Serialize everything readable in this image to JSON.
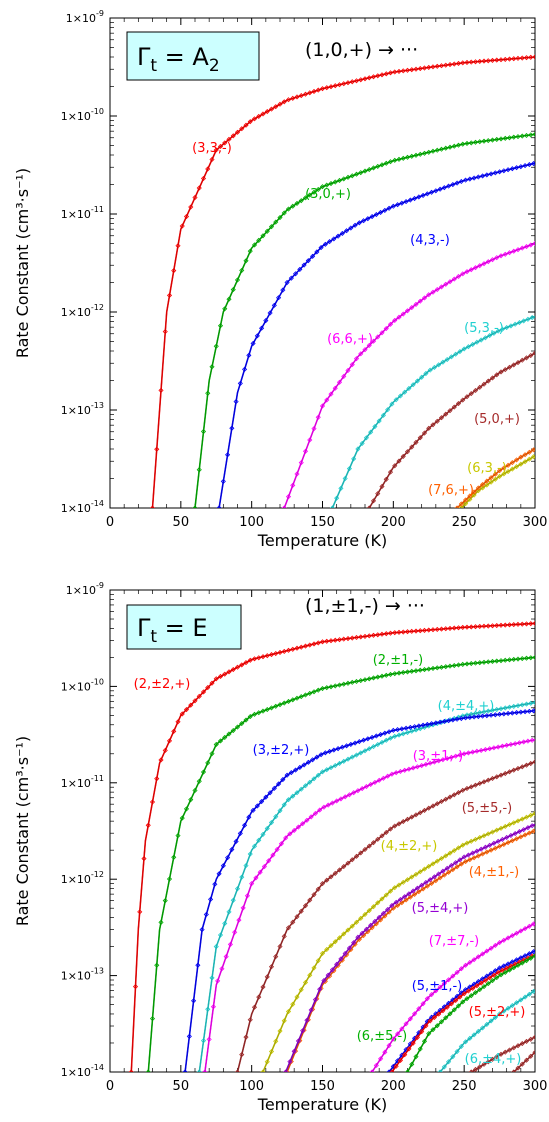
{
  "chart_data": [
    {
      "type": "line",
      "panel_label": {
        "symbol": "Γ",
        "subscript": "t",
        "rest": " = A",
        "rest_subscript": "2"
      },
      "transition": "(1,0,+) → ···",
      "xlabel": "Temperature (K)",
      "ylabel": "Rate Constant (cm³·s⁻¹)",
      "xlim": [
        0,
        300
      ],
      "ylim": [
        1e-14,
        1e-09
      ],
      "yscale": "log",
      "x_ticks": [
        "0",
        "50",
        "100",
        "150",
        "200",
        "250",
        "300"
      ],
      "y_ticks": [
        {
          "base": "1×10",
          "exp": "-14"
        },
        {
          "base": "1×10",
          "exp": "-13"
        },
        {
          "base": "1×10",
          "exp": "-12"
        },
        {
          "base": "1×10",
          "exp": "-11"
        },
        {
          "base": "1×10",
          "exp": "-10"
        },
        {
          "base": "1×10",
          "exp": "-9"
        }
      ],
      "series": [
        {
          "name": "(3,3,-)",
          "color": "#ff0000",
          "x": [
            30,
            40,
            50,
            75,
            100,
            125,
            150,
            200,
            250,
            300
          ],
          "y": [
            1e-14,
            1e-12,
            7e-12,
            4.5e-11,
            9e-11,
            1.45e-10,
            1.9e-10,
            2.8e-10,
            3.5e-10,
            4e-10
          ]
        },
        {
          "name": "(3,0,+)",
          "color": "#00b000",
          "x": [
            60,
            70,
            80,
            100,
            125,
            150,
            200,
            250,
            300
          ],
          "y": [
            1e-14,
            2e-13,
            1e-12,
            4.5e-12,
            1.1e-11,
            1.9e-11,
            3.5e-11,
            5.2e-11,
            6.5e-11
          ]
        },
        {
          "name": "(4,3,-)",
          "color": "#0000ff",
          "x": [
            77,
            90,
            100,
            125,
            150,
            175,
            200,
            250,
            300
          ],
          "y": [
            1e-14,
            1.5e-13,
            4.5e-13,
            2e-12,
            4.7e-12,
            8e-12,
            1.2e-11,
            2.2e-11,
            3.3e-11
          ]
        },
        {
          "name": "(6,6,+)",
          "color": "#ff00ff",
          "x": [
            123,
            150,
            175,
            200,
            225,
            250,
            275,
            300
          ],
          "y": [
            1e-14,
            1.1e-13,
            3.5e-13,
            8e-13,
            1.5e-12,
            2.5e-12,
            3.7e-12,
            5e-12
          ]
        },
        {
          "name": "(5,3,-)",
          "color": "#20d0d0",
          "x": [
            157,
            175,
            200,
            225,
            250,
            275,
            300
          ],
          "y": [
            1e-14,
            4e-14,
            1.2e-13,
            2.5e-13,
            4.2e-13,
            6.5e-13,
            9e-13
          ]
        },
        {
          "name": "(5,0,+)",
          "color": "#a52a2a",
          "x": [
            183,
            200,
            225,
            250,
            275,
            300
          ],
          "y": [
            1e-14,
            2.6e-14,
            6.5e-14,
            1.3e-13,
            2.4e-13,
            3.8e-13
          ]
        },
        {
          "name": "(6,3,-)",
          "color": "#c8c800",
          "x": [
            248,
            260,
            275,
            290,
            300
          ],
          "y": [
            1e-14,
            1.5e-14,
            2.1e-14,
            2.8e-14,
            3.4e-14
          ]
        },
        {
          "name": "(7,6,+)",
          "color": "#ff6000",
          "x": [
            245,
            260,
            275,
            290,
            300
          ],
          "y": [
            1e-14,
            1.6e-14,
            2.4e-14,
            3.3e-14,
            4e-14
          ]
        }
      ]
    },
    {
      "type": "line",
      "panel_label": {
        "symbol": "Γ",
        "subscript": "t",
        "rest": " = E",
        "rest_subscript": ""
      },
      "transition": "(1,±1,-) → ···",
      "xlabel": "Temperature (K)",
      "ylabel": "Rate Constant (cm³·s⁻¹)",
      "xlim": [
        0,
        300
      ],
      "ylim": [
        1e-14,
        1e-09
      ],
      "yscale": "log",
      "x_ticks": [
        "0",
        "50",
        "100",
        "150",
        "200",
        "250",
        "300"
      ],
      "y_ticks": [
        {
          "base": "1×10",
          "exp": "-14"
        },
        {
          "base": "1×10",
          "exp": "-13"
        },
        {
          "base": "1×10",
          "exp": "-12"
        },
        {
          "base": "1×10",
          "exp": "-11"
        },
        {
          "base": "1×10",
          "exp": "-10"
        },
        {
          "base": "1×10",
          "exp": "-9"
        }
      ],
      "series": [
        {
          "name": "(2,±2,+)",
          "color": "#ff0000",
          "x": [
            15,
            20,
            25,
            35,
            50,
            75,
            100,
            150,
            200,
            250,
            300
          ],
          "y": [
            1e-14,
            3e-13,
            2.5e-12,
            1.6e-11,
            5e-11,
            1.2e-10,
            1.9e-10,
            2.9e-10,
            3.6e-10,
            4.1e-10,
            4.5e-10
          ]
        },
        {
          "name": "(2,±1,-)",
          "color": "#00b000",
          "x": [
            27,
            35,
            50,
            75,
            100,
            150,
            200,
            250,
            300
          ],
          "y": [
            1e-14,
            3e-13,
            4e-12,
            2.5e-11,
            5e-11,
            9.5e-11,
            1.35e-10,
            1.7e-10,
            2e-10
          ]
        },
        {
          "name": "(4,±4,+)",
          "color": "#20d0d0",
          "x": [
            63,
            75,
            100,
            125,
            150,
            200,
            250,
            300
          ],
          "y": [
            1e-14,
            2e-13,
            2e-12,
            6.5e-12,
            1.3e-11,
            3e-11,
            5e-11,
            6.8e-11
          ]
        },
        {
          "name": "(3,±2,+)",
          "color": "#0000ff",
          "x": [
            53,
            65,
            75,
            100,
            125,
            150,
            200,
            250,
            300
          ],
          "y": [
            1e-14,
            3e-13,
            1e-12,
            5e-12,
            1.2e-11,
            2e-11,
            3.5e-11,
            4.7e-11,
            5.6e-11
          ]
        },
        {
          "name": "(3,±1,-)",
          "color": "#ff00ff",
          "x": [
            67,
            75,
            100,
            125,
            150,
            200,
            250,
            300
          ],
          "y": [
            1e-14,
            8e-14,
            9e-13,
            2.8e-12,
            5.5e-12,
            1.25e-11,
            2e-11,
            2.8e-11
          ]
        },
        {
          "name": "(5,±5,-)",
          "color": "#a52a2a",
          "x": [
            90,
            100,
            125,
            150,
            200,
            250,
            300
          ],
          "y": [
            1e-14,
            4e-14,
            3e-13,
            9e-13,
            3.5e-12,
            8.5e-12,
            1.65e-11
          ]
        },
        {
          "name": "(4,±2,+)",
          "color": "#c8c800",
          "x": [
            108,
            125,
            150,
            200,
            250,
            300
          ],
          "y": [
            1e-14,
            4e-14,
            1.7e-13,
            8e-13,
            2.3e-12,
            4.8e-12
          ]
        },
        {
          "name": "(4,±1,-)",
          "color": "#ff6000",
          "x": [
            125,
            150,
            175,
            200,
            250,
            300
          ],
          "y": [
            1e-14,
            8e-14,
            2.3e-13,
            5e-13,
            1.5e-12,
            3.2e-12
          ]
        },
        {
          "name": "(5,±4,+)",
          "color": "#9400d3",
          "x": [
            124,
            150,
            175,
            200,
            250,
            300
          ],
          "y": [
            1e-14,
            8.5e-14,
            2.5e-13,
            5.5e-13,
            1.7e-12,
            3.7e-12
          ]
        },
        {
          "name": "(7,±7,-)",
          "color": "#ff00ff",
          "x": [
            185,
            200,
            225,
            250,
            275,
            300
          ],
          "y": [
            1e-14,
            2.2e-14,
            6e-14,
            1.25e-13,
            2.2e-13,
            3.5e-13
          ]
        },
        {
          "name": "(5,±1,-)",
          "color": "#0000ff",
          "x": [
            197,
            225,
            250,
            275,
            300
          ],
          "y": [
            1e-14,
            3.5e-14,
            7e-14,
            1.2e-13,
            1.8e-13
          ]
        },
        {
          "name": "(5,±2,+)",
          "color": "#ff0000",
          "x": [
            199,
            225,
            250,
            275,
            300
          ],
          "y": [
            1e-14,
            3.3e-14,
            6.5e-14,
            1.1e-13,
            1.65e-13
          ]
        },
        {
          "name": "(6,±5,-)",
          "color": "#00b000",
          "x": [
            210,
            225,
            250,
            275,
            300
          ],
          "y": [
            1e-14,
            2.5e-14,
            5.5e-14,
            1e-13,
            1.6e-13
          ]
        },
        {
          "name": "(6,±4,+)",
          "color": "#20d0d0",
          "x": [
            233,
            250,
            275,
            300
          ],
          "y": [
            1e-14,
            2e-14,
            4e-14,
            7e-14
          ]
        },
        {
          "name": "",
          "color": "#a52a2a",
          "x": [
            255,
            275,
            300
          ],
          "y": [
            1e-14,
            1.5e-14,
            2.3e-14
          ]
        },
        {
          "name": "",
          "color": "#a52a2a",
          "x": [
            285,
            300
          ],
          "y": [
            1e-14,
            1.6e-14
          ]
        }
      ]
    }
  ]
}
